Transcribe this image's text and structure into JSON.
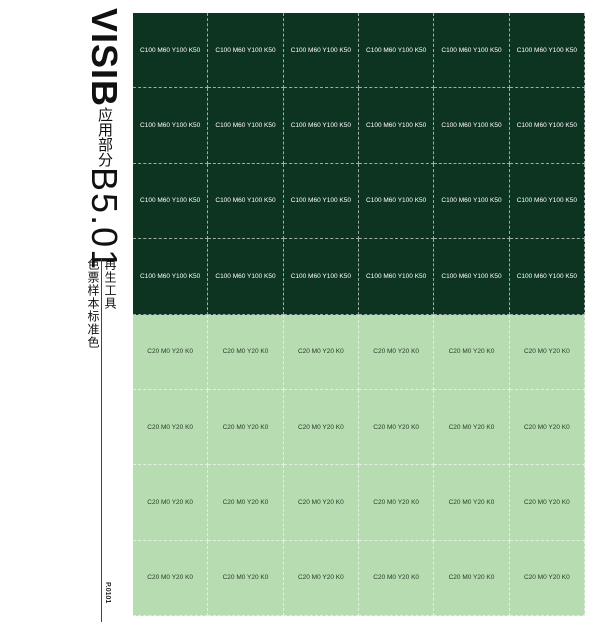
{
  "header": {
    "brand": "VISI",
    "brand_mark": "B",
    "section": "应用部分",
    "code": "B5.01",
    "subtitle1": "再生工具",
    "subtitle2": "色票样本标准色"
  },
  "page_number": "P.0101",
  "colors": {
    "dark": "#0d3321",
    "light": "#b7dcb1"
  },
  "swatches": {
    "dark_label": "C100 M60 Y100 K50",
    "light_label": "C20 M0 Y20 K0",
    "columns": 6,
    "dark_rows": 4,
    "light_rows": 4
  }
}
